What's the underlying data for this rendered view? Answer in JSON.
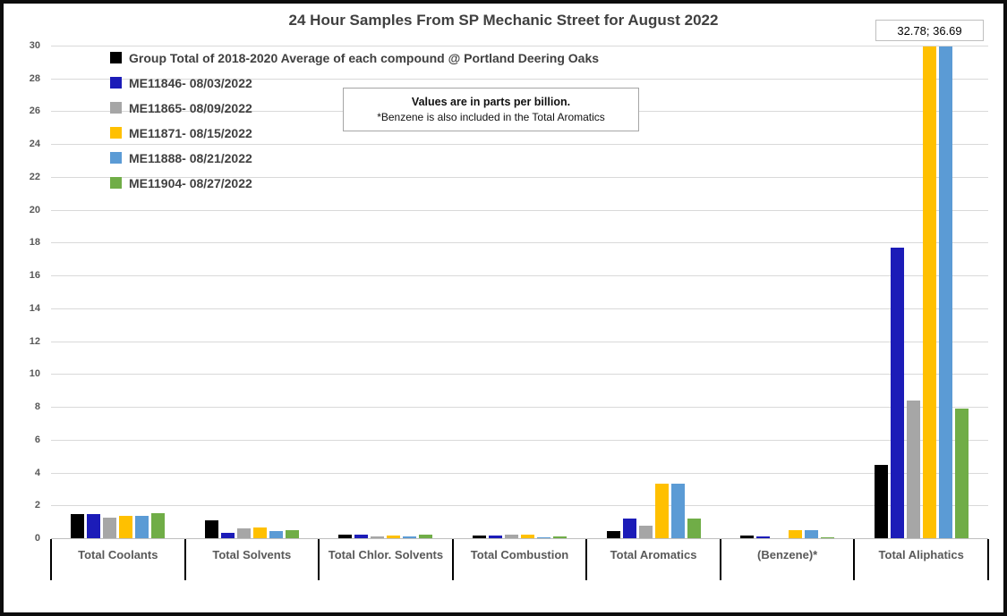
{
  "title": "24 Hour Samples From SP Mechanic Street for August 2022",
  "note_box": {
    "line1": "Values are in parts per billion.",
    "line2": "*Benzene is also included in the Total Aromatics"
  },
  "clipped_values_label": "32.78; 36.69",
  "colors": {
    "gridline": "#D9D9D9",
    "axis_line": "#BFBFBF",
    "separator": "#000000",
    "tick_text": "#595959",
    "category_text": "#595959",
    "title_text": "#404040",
    "legend_text": "#404040"
  },
  "chart_data": {
    "type": "bar",
    "title": "24 Hour Samples From SP Mechanic Street for August 2022",
    "xlabel": "",
    "ylabel": "",
    "units": "parts per billion",
    "ylim": [
      0,
      30
    ],
    "ytick_step": 2,
    "grid": true,
    "legend_position": "inside-top-left",
    "categories": [
      "Total Coolants",
      "Total Solvents",
      "Total Chlor. Solvents",
      "Total Combustion",
      "Total Aromatics",
      "(Benzene)*",
      "Total Aliphatics"
    ],
    "series": [
      {
        "name": "Group Total of 2018-2020 Average of each compound @ Portland Deering Oaks",
        "color": "#000000",
        "values": [
          1.55,
          1.15,
          0.3,
          0.24,
          0.5,
          0.2,
          4.5
        ]
      },
      {
        "name": "ME11846- 08/03/2022",
        "color": "#1C1CB8",
        "values": [
          1.5,
          0.4,
          0.27,
          0.2,
          1.25,
          0.16,
          17.75
        ]
      },
      {
        "name": "ME11865- 08/09/2022",
        "color": "#A6A6A6",
        "values": [
          1.3,
          0.65,
          0.17,
          0.28,
          0.8,
          0.08,
          8.45
        ]
      },
      {
        "name": "ME11871- 08/15/2022",
        "color": "#FFC000",
        "values": [
          1.4,
          0.7,
          0.22,
          0.28,
          3.35,
          0.55,
          32.78
        ]
      },
      {
        "name": "ME11888- 08/21/2022",
        "color": "#5B9BD5",
        "values": [
          1.4,
          0.5,
          0.19,
          0.1,
          3.35,
          0.53,
          36.69
        ]
      },
      {
        "name": "ME11904- 08/27/2022",
        "color": "#70AD47",
        "values": [
          1.6,
          0.55,
          0.3,
          0.16,
          1.25,
          0.13,
          7.95
        ]
      }
    ],
    "clipped_bars_annotation": "32.78; 36.69",
    "clipped_bars_note": "Yellow (ME11871) and light blue (ME11888) bars in Total Aliphatics are clipped at the 30 ppb axis maximum"
  }
}
